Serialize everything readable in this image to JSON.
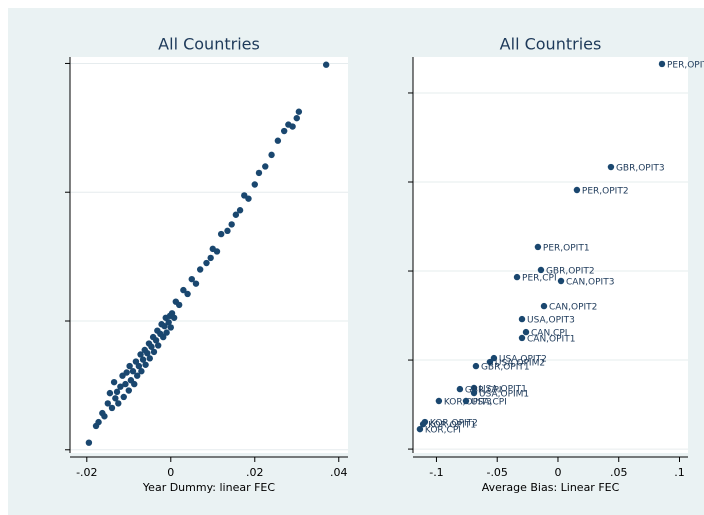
{
  "chart_data": [
    {
      "type": "scatter",
      "title": "All Countries",
      "x_label": "Year Dummy: linear FEC",
      "color": "#1a476f",
      "grid": true,
      "xlim": [
        -0.024,
        0.0422
      ],
      "ylim": [
        -0.0205,
        0.041
      ],
      "xticks": [
        {
          "value": -0.02,
          "label": "-.02"
        },
        0,
        {
          "value": 0.02,
          "label": ".02"
        },
        {
          "value": 0.04,
          "label": ".04"
        }
      ],
      "yticks": [
        -0.02,
        0,
        0.02,
        0.04
      ],
      "x": [
        -0.0195,
        -0.0178,
        -0.0172,
        -0.0163,
        -0.0158,
        -0.015,
        -0.0145,
        -0.014,
        -0.0135,
        -0.0132,
        -0.0128,
        -0.0125,
        -0.012,
        -0.0115,
        -0.0112,
        -0.0108,
        -0.0105,
        -0.01,
        -0.0098,
        -0.0095,
        -0.009,
        -0.0087,
        -0.0083,
        -0.008,
        -0.0076,
        -0.0072,
        -0.007,
        -0.0066,
        -0.0062,
        -0.006,
        -0.0056,
        -0.0052,
        -0.005,
        -0.0046,
        -0.0042,
        -0.004,
        -0.0035,
        -0.0032,
        -0.003,
        -0.0025,
        -0.0022,
        -0.0018,
        -0.0015,
        -0.0012,
        -0.001,
        -0.0005,
        -0.0002,
        0,
        0.0003,
        0.0008,
        0.0012,
        0.002,
        0.003,
        0.004,
        0.005,
        0.006,
        0.007,
        0.0085,
        0.0095,
        0.01,
        0.011,
        0.012,
        0.0135,
        0.0145,
        0.0155,
        0.0165,
        0.0175,
        0.0185,
        0.02,
        0.021,
        0.0225,
        0.024,
        0.0255,
        0.027,
        0.028,
        0.029,
        0.03,
        0.0305,
        0.037
      ],
      "y": [
        -0.0189,
        -0.0163,
        -0.0157,
        -0.0143,
        -0.0148,
        -0.0128,
        -0.0112,
        -0.0135,
        -0.0095,
        -0.012,
        -0.011,
        -0.0128,
        -0.0102,
        -0.0085,
        -0.0118,
        -0.0098,
        -0.008,
        -0.0108,
        -0.007,
        -0.0092,
        -0.0078,
        -0.0098,
        -0.0063,
        -0.0085,
        -0.007,
        -0.0052,
        -0.0078,
        -0.006,
        -0.0045,
        -0.0068,
        -0.005,
        -0.0035,
        -0.0058,
        -0.004,
        -0.0025,
        -0.0048,
        -0.003,
        -0.0015,
        -0.0038,
        -0.002,
        -0.0005,
        -0.0025,
        -0.0008,
        0.0005,
        -0.0018,
        -0.0002,
        0.0008,
        -0.001,
        0.0012,
        0.0005,
        0.003,
        0.0025,
        0.0048,
        0.0042,
        0.0065,
        0.0058,
        0.008,
        0.009,
        0.0098,
        0.0112,
        0.0108,
        0.0135,
        0.014,
        0.015,
        0.0165,
        0.0172,
        0.0195,
        0.019,
        0.0212,
        0.023,
        0.024,
        0.0258,
        0.028,
        0.0295,
        0.0305,
        0.0302,
        0.0315,
        0.0325,
        0.0398
      ]
    },
    {
      "type": "scatter",
      "title": "All Countries",
      "x_label": "Average Bias: Linear FEC",
      "color": "#1a476f",
      "grid": true,
      "xlim": [
        -0.1193,
        0.107
      ],
      "ylim": [
        -0.0022,
        0.2202
      ],
      "xticks": [
        {
          "value": -0.1,
          "label": "-.1"
        },
        {
          "value": -0.05,
          "label": "-.05"
        },
        0,
        {
          "value": 0.05,
          "label": ".05"
        },
        {
          "value": 0.1,
          "label": ".1"
        }
      ],
      "yticks": [
        0,
        0.05,
        0.1,
        0.15,
        0.2
      ],
      "x": [
        0.0856,
        0.0436,
        0.0156,
        -0.0165,
        -0.014,
        -0.0337,
        0.0025,
        -0.0115,
        -0.0296,
        -0.0263,
        -0.0296,
        -0.0527,
        -0.056,
        -0.0675,
        -0.0691,
        -0.0807,
        -0.0691,
        -0.098,
        -0.0757,
        -0.1095,
        -0.111,
        -0.1136
      ],
      "y": [
        0.2163,
        0.1584,
        0.1455,
        0.1135,
        0.1006,
        0.0966,
        0.0944,
        0.0803,
        0.073,
        0.0657,
        0.0624,
        0.0511,
        0.0489,
        0.0466,
        0.0343,
        0.0337,
        0.0315,
        0.027,
        0.027,
        0.0152,
        0.014,
        0.0112
      ],
      "point_labels": [
        "PER,OPIT3",
        "GBR,OPIT3",
        "PER,OPIT2",
        "PER,OPIT1",
        "GBR,OPIT2",
        "PER,CPI",
        "CAN,OPIT3",
        "CAN,OPIT2",
        "USA,OPIT3",
        "CAN,CPI",
        "CAN,OPIT1",
        "USA,OPIT2",
        "USA,OPIM2",
        "GBR,OPIT1",
        "USA,OPIT1",
        "GBR,CPI",
        "USA,OPIM1",
        "KOR,OPIT3",
        "USA,CPI",
        "KOR,OPIT2",
        "KOR,OPIT1",
        "KOR,CPI"
      ]
    }
  ]
}
